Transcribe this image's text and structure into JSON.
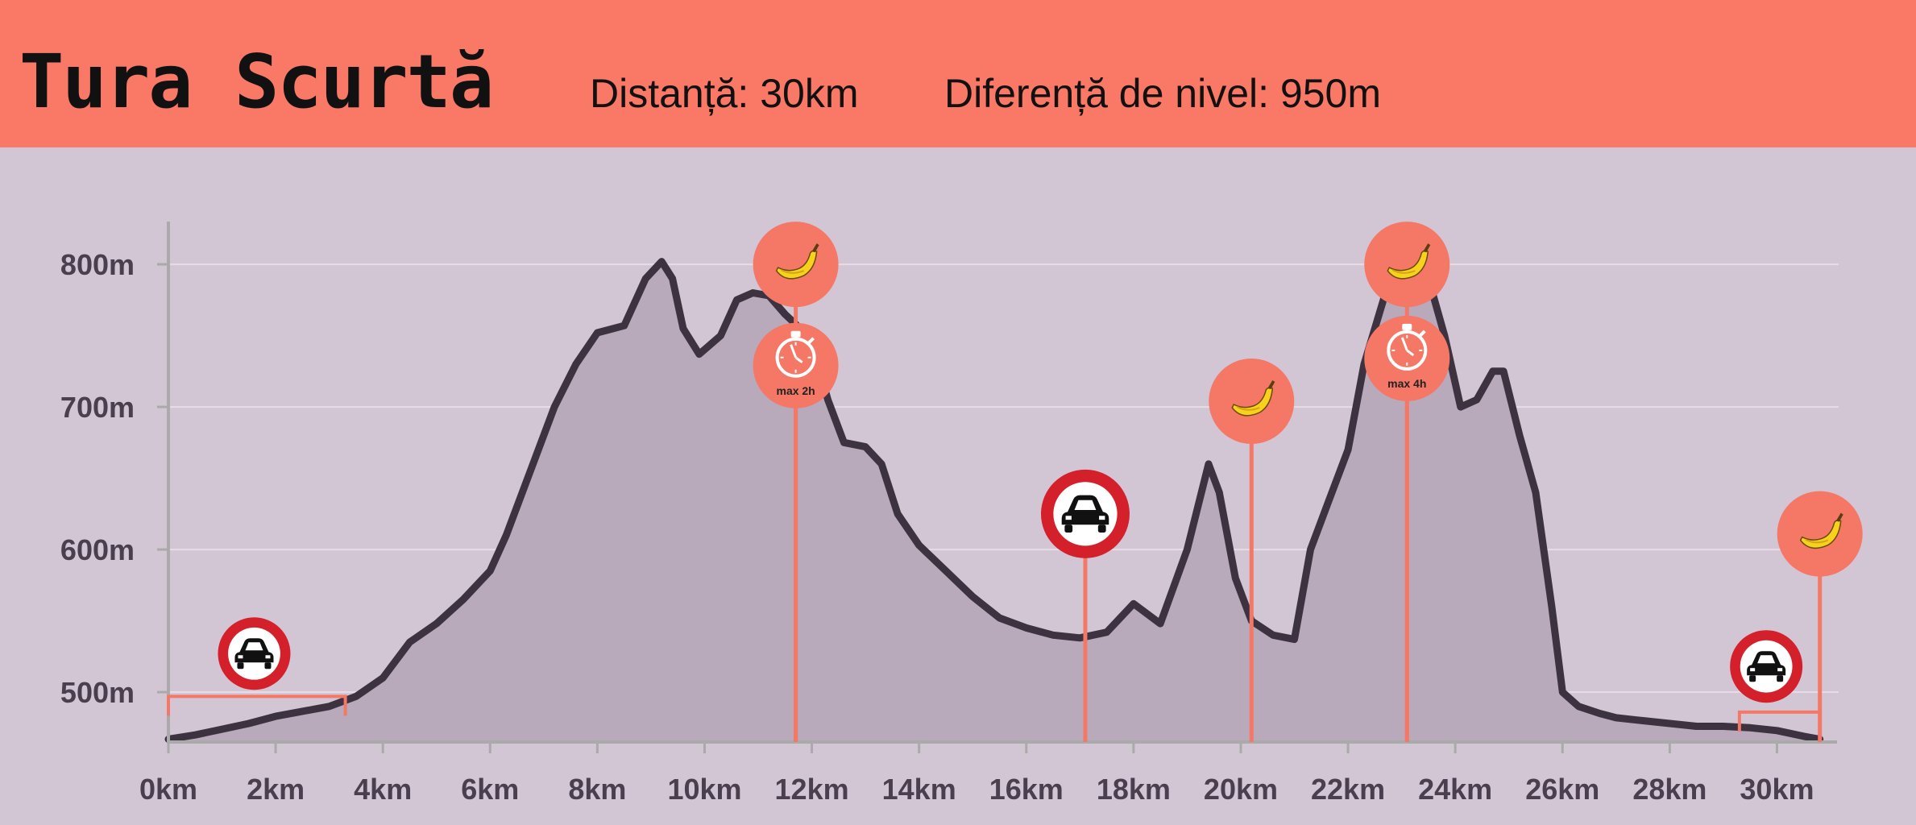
{
  "header": {
    "title": "Tura Scurtă",
    "distance": "Distanță: 30km",
    "elevation_gain": "Diferență de nivel: 950m"
  },
  "colors": {
    "header_bg": "#fa7866",
    "chart_bg": "#d3c6d4",
    "area_fill": "#b8a9bb",
    "line": "#3c3240",
    "marker": "#f47865",
    "no_car_ring": "#d3202a"
  },
  "chart_data": {
    "type": "area",
    "title": "",
    "xlabel": "",
    "ylabel": "",
    "xlim": [
      0,
      31
    ],
    "ylim": [
      465,
      830
    ],
    "x_unit": "km",
    "y_unit": "m",
    "x_ticks": [
      "0km",
      "2km",
      "4km",
      "6km",
      "8km",
      "10km",
      "12km",
      "14km",
      "16km",
      "18km",
      "20km",
      "22km",
      "24km",
      "26km",
      "28km",
      "30km"
    ],
    "y_ticks": [
      "500m",
      "600m",
      "700m",
      "800m"
    ],
    "grid": true,
    "series": [
      {
        "x": [
          0,
          0.5,
          1,
          1.5,
          2,
          3,
          3.5,
          4,
          4.5,
          5,
          5.5,
          6,
          6.3,
          6.8,
          7.2,
          7.6,
          8,
          8.5,
          8.9,
          9.2,
          9.4,
          9.6,
          9.9,
          10.3,
          10.6,
          10.9,
          11.2,
          11.5,
          11.7,
          12,
          12.3,
          12.6,
          13,
          13.3,
          13.6,
          14,
          14.5,
          15,
          15.5,
          16,
          16.5,
          17,
          17.5,
          18,
          18.5,
          19,
          19.4,
          19.6,
          19.9,
          20.2,
          20.6,
          21,
          21.3,
          21.6,
          22,
          22.3,
          22.7,
          23,
          23.3,
          23.5,
          23.8,
          24.1,
          24.4,
          24.7,
          24.9,
          25.2,
          25.5,
          25.8,
          26,
          26.3,
          26.7,
          27,
          27.5,
          28,
          28.5,
          29,
          29.5,
          30,
          30.5,
          30.8
        ],
        "y": [
          467,
          470,
          474,
          478,
          483,
          490,
          497,
          510,
          535,
          548,
          565,
          585,
          610,
          660,
          700,
          730,
          752,
          757,
          790,
          802,
          790,
          755,
          737,
          750,
          775,
          780,
          778,
          765,
          758,
          745,
          705,
          675,
          672,
          660,
          625,
          603,
          585,
          567,
          552,
          545,
          540,
          538,
          542,
          562,
          548,
          600,
          660,
          640,
          580,
          550,
          540,
          537,
          600,
          630,
          670,
          730,
          780,
          800,
          823,
          790,
          750,
          700,
          705,
          725,
          725,
          680,
          640,
          560,
          500,
          490,
          485,
          482,
          480,
          478,
          476,
          476,
          475,
          473,
          469,
          467
        ]
      }
    ],
    "annotations": [
      {
        "type": "no-car",
        "x": 1.6,
        "y": 527,
        "bracket": [
          0,
          3.3
        ],
        "bracket_y": 497
      },
      {
        "type": "banana",
        "x": 11.7,
        "y": 800
      },
      {
        "type": "stopwatch",
        "x": 11.7,
        "y": 729,
        "label": "max 2h"
      },
      {
        "type": "no-car",
        "x": 17.1,
        "y": 625
      },
      {
        "type": "banana",
        "x": 20.2,
        "y": 704
      },
      {
        "type": "banana",
        "x": 23.1,
        "y": 800
      },
      {
        "type": "stopwatch",
        "x": 23.1,
        "y": 734,
        "label": "max 4h"
      },
      {
        "type": "no-car",
        "x": 29.8,
        "y": 518,
        "bracket": [
          29.3,
          30.8
        ],
        "bracket_y": 486
      },
      {
        "type": "banana",
        "x": 30.8,
        "y": 611
      }
    ]
  }
}
